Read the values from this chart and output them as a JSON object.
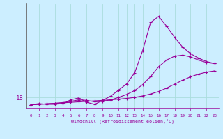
{
  "background_color": "#cceeff",
  "grid_color": "#aadddd",
  "line_color": "#990099",
  "xlabel": "Windchill (Refroidissement éolien,°C)",
  "x_ticks": [
    0,
    1,
    2,
    3,
    4,
    5,
    6,
    7,
    8,
    9,
    10,
    11,
    12,
    13,
    14,
    15,
    16,
    17,
    18,
    19,
    20,
    21,
    22,
    23
  ],
  "y_tick_val": 18,
  "xlim": [
    -0.5,
    23.5
  ],
  "ylim": [
    17.55,
    21.8
  ],
  "line1_x": [
    0,
    1,
    2,
    3,
    4,
    5,
    6,
    7,
    8,
    9,
    10,
    11,
    12,
    13,
    14,
    15,
    16,
    17,
    18,
    19,
    20,
    21,
    22,
    23
  ],
  "line1_y": [
    17.7,
    17.72,
    17.74,
    17.76,
    17.78,
    17.8,
    17.82,
    17.84,
    17.86,
    17.88,
    17.9,
    17.93,
    17.96,
    18.0,
    18.06,
    18.14,
    18.24,
    18.38,
    18.54,
    18.7,
    18.84,
    18.95,
    19.03,
    19.08
  ],
  "line2_x": [
    0,
    1,
    2,
    3,
    4,
    5,
    6,
    7,
    8,
    9,
    10,
    11,
    12,
    13,
    14,
    15,
    16,
    17,
    18,
    19,
    20,
    21,
    22,
    23
  ],
  "line2_y": [
    17.7,
    17.72,
    17.74,
    17.76,
    17.79,
    17.84,
    17.9,
    17.88,
    17.82,
    17.84,
    17.9,
    18.0,
    18.12,
    18.28,
    18.52,
    18.85,
    19.25,
    19.52,
    19.68,
    19.72,
    19.65,
    19.52,
    19.42,
    19.38
  ],
  "line3_x": [
    0,
    1,
    2,
    3,
    4,
    5,
    6,
    7,
    8,
    9,
    10,
    11,
    12,
    13,
    14,
    15,
    16,
    17,
    18,
    19,
    20,
    21,
    22,
    23
  ],
  "line3_y": [
    17.7,
    17.75,
    17.72,
    17.72,
    17.75,
    17.9,
    17.98,
    17.8,
    17.72,
    17.88,
    18.05,
    18.3,
    18.55,
    19.0,
    19.9,
    21.05,
    21.3,
    20.9,
    20.45,
    20.05,
    19.78,
    19.6,
    19.46,
    19.38
  ]
}
